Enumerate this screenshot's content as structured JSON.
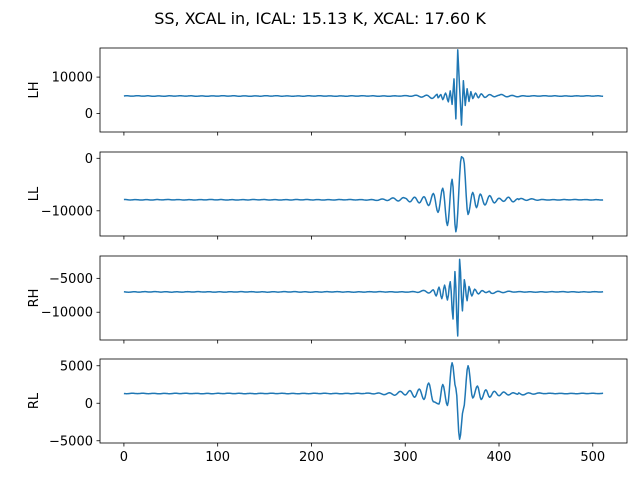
{
  "chart_data": {
    "type": "line",
    "title": "SS, XCAL in, ICAL: 15.13 K, XCAL: 17.60 K",
    "x": {
      "range": [
        0,
        511
      ],
      "ticks": [
        0,
        100,
        200,
        300,
        400,
        500
      ],
      "xlim": [
        -25.5,
        536.5
      ]
    },
    "line_color": "#1f77b4",
    "panels": [
      {
        "ylabel": "LH",
        "ylim": [
          -5100,
          18000
        ],
        "yticks": [
          0,
          10000
        ],
        "baseline": 4800,
        "envelope_start": 290,
        "waveform": [
          [
            335,
            4300
          ],
          [
            338,
            5200
          ],
          [
            340,
            3800
          ],
          [
            343,
            5600
          ],
          [
            346,
            3200
          ],
          [
            348,
            6200
          ],
          [
            350,
            2500
          ],
          [
            352,
            9500
          ],
          [
            354,
            -1500
          ],
          [
            356,
            17500
          ],
          [
            358,
            7000
          ],
          [
            360,
            -3200
          ],
          [
            362,
            9000
          ],
          [
            364,
            2200
          ],
          [
            366,
            6800
          ],
          [
            368,
            3300
          ],
          [
            370,
            6000
          ],
          [
            372,
            4100
          ],
          [
            375,
            5600
          ],
          [
            378,
            4300
          ],
          [
            381,
            5400
          ],
          [
            385,
            4400
          ],
          [
            390,
            5200
          ],
          [
            395,
            4600
          ],
          [
            400,
            5000
          ]
        ]
      },
      {
        "ylabel": "LL",
        "ylim": [
          -14800,
          1200
        ],
        "yticks": [
          -10000,
          0
        ],
        "baseline": -7900,
        "envelope_start": 250,
        "waveform": [
          [
            300,
            -7600
          ],
          [
            305,
            -8300
          ],
          [
            310,
            -7400
          ],
          [
            315,
            -8500
          ],
          [
            320,
            -7300
          ],
          [
            325,
            -9000
          ],
          [
            330,
            -6700
          ],
          [
            335,
            -10300
          ],
          [
            340,
            -5700
          ],
          [
            345,
            -12800
          ],
          [
            350,
            -4000
          ],
          [
            354,
            -14000
          ],
          [
            360,
            300
          ],
          [
            362,
            0
          ],
          [
            367,
            -10700
          ],
          [
            372,
            -6500
          ],
          [
            376,
            -9400
          ],
          [
            380,
            -6800
          ],
          [
            385,
            -8900
          ],
          [
            390,
            -7100
          ],
          [
            395,
            -8500
          ],
          [
            400,
            -7600
          ],
          [
            405,
            -8200
          ],
          [
            410,
            -7400
          ],
          [
            415,
            -8300
          ],
          [
            420,
            -7700
          ]
        ]
      },
      {
        "ylabel": "RH",
        "ylim": [
          -14100,
          -1700
        ],
        "yticks": [
          -10000,
          -5000
        ],
        "baseline": -7000,
        "envelope_start": 300,
        "waveform": [
          [
            330,
            -6700
          ],
          [
            333,
            -7600
          ],
          [
            336,
            -6300
          ],
          [
            339,
            -8000
          ],
          [
            342,
            -6000
          ],
          [
            345,
            -8200
          ],
          [
            348,
            -5500
          ],
          [
            351,
            -11000
          ],
          [
            353,
            -4000
          ],
          [
            356,
            -13500
          ],
          [
            358,
            -2200
          ],
          [
            361,
            -9800
          ],
          [
            363,
            -5200
          ],
          [
            366,
            -8300
          ],
          [
            368,
            -6200
          ],
          [
            371,
            -7600
          ],
          [
            374,
            -6600
          ],
          [
            378,
            -7300
          ],
          [
            382,
            -6800
          ],
          [
            386,
            -7100
          ],
          [
            390,
            -6900
          ]
        ]
      },
      {
        "ylabel": "RL",
        "ylim": [
          -5300,
          5900
        ],
        "yticks": [
          -5000,
          0,
          5000
        ],
        "baseline": 1300,
        "envelope_start": 250,
        "waveform": [
          [
            300,
            1100
          ],
          [
            305,
            1700
          ],
          [
            310,
            800
          ],
          [
            315,
            1900
          ],
          [
            320,
            500
          ],
          [
            325,
            2700
          ],
          [
            330,
            200
          ],
          [
            336,
            -100
          ],
          [
            340,
            2500
          ],
          [
            345,
            -300
          ],
          [
            350,
            5400
          ],
          [
            354,
            2000
          ],
          [
            358,
            -4800
          ],
          [
            362,
            -800
          ],
          [
            367,
            5000
          ],
          [
            372,
            700
          ],
          [
            377,
            2300
          ],
          [
            381,
            500
          ],
          [
            386,
            1800
          ],
          [
            390,
            800
          ],
          [
            395,
            1600
          ],
          [
            400,
            1000
          ],
          [
            405,
            1500
          ],
          [
            410,
            1100
          ],
          [
            415,
            1400
          ],
          [
            420,
            1200
          ]
        ]
      }
    ]
  }
}
